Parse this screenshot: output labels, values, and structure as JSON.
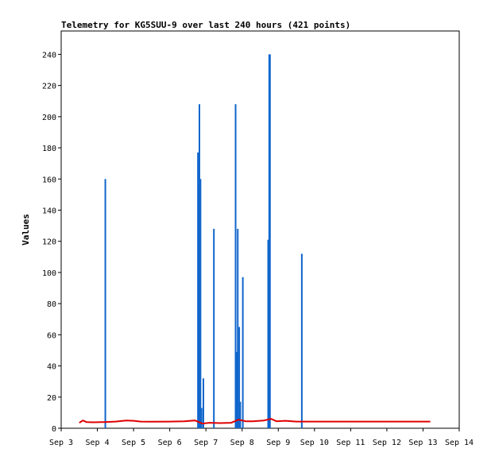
{
  "chart_data": {
    "type": "bar",
    "title": "Telemetry for KG5SUU-9 over last 240 hours (421 points)",
    "xlabel": "",
    "ylabel": "Values",
    "xlim": [
      0,
      11
    ],
    "ylim": [
      0,
      255
    ],
    "x_ticks": [
      "Sep 3",
      "Sep 4",
      "Sep 5",
      "Sep 6",
      "Sep 7",
      "Sep 8",
      "Sep 9",
      "Sep 10",
      "Sep 11",
      "Sep 12",
      "Sep 13",
      "Sep 14"
    ],
    "y_ticks": [
      0,
      20,
      40,
      60,
      80,
      100,
      120,
      140,
      160,
      180,
      200,
      220,
      240
    ],
    "grid": false,
    "colors": {
      "bars": "#1166cc",
      "line": "#e00000",
      "axis": "#000000"
    },
    "series": [
      {
        "type": "bar",
        "x": [
          1.22,
          3.78,
          3.82,
          3.85,
          3.88,
          3.93,
          4.22,
          4.82,
          4.86,
          4.88,
          4.92,
          4.95,
          5.02,
          5.72,
          5.75,
          5.77,
          6.65
        ],
        "y": [
          160,
          177,
          208,
          160,
          13,
          32,
          128,
          208,
          49,
          128,
          65,
          17,
          97,
          121,
          240,
          240,
          112
        ]
      },
      {
        "type": "line",
        "x": [
          0.5,
          0.6,
          0.7,
          0.9,
          1.2,
          1.5,
          1.8,
          2.0,
          2.2,
          2.5,
          3.0,
          3.4,
          3.7,
          3.9,
          4.1,
          4.4,
          4.7,
          4.9,
          5.1,
          5.3,
          5.6,
          5.8,
          5.95,
          6.2,
          6.5,
          7.0,
          8.0,
          9.0,
          10.0,
          10.2
        ],
        "y": [
          3.5,
          5.0,
          4.0,
          3.8,
          4.0,
          4.3,
          5.0,
          4.8,
          4.3,
          4.2,
          4.3,
          4.5,
          5.0,
          3.0,
          3.5,
          3.3,
          3.5,
          5.5,
          4.5,
          4.5,
          5.0,
          6.0,
          4.5,
          4.8,
          4.3,
          4.3,
          4.3,
          4.3,
          4.3,
          4.3
        ]
      }
    ]
  }
}
